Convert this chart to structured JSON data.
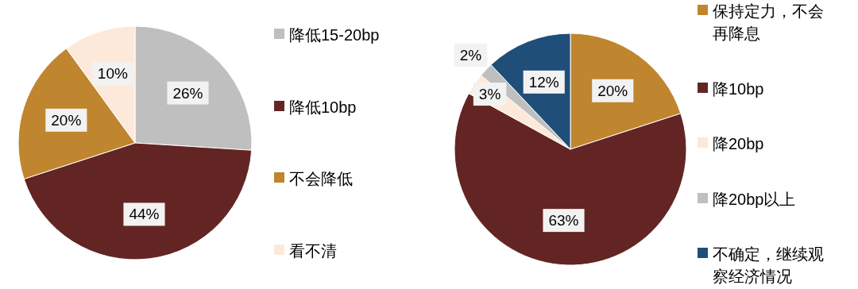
{
  "chart_data": [
    {
      "type": "pie",
      "categories": [
        "降低15-20bp",
        "降低10bp",
        "不会降低",
        "看不清"
      ],
      "values": [
        26,
        44,
        20,
        10
      ],
      "value_labels": [
        "26%",
        "44%",
        "20%",
        "10%"
      ],
      "colors": [
        "#bfbfbf",
        "#632523",
        "#c0852f",
        "#fde9d9"
      ],
      "legend": "right"
    },
    {
      "type": "pie",
      "categories": [
        "保持定力，不会再降息",
        "降10bp",
        "降20bp",
        "降20bp以上",
        "不确定，继续观察经济情况"
      ],
      "values": [
        20,
        63,
        3,
        2,
        12
      ],
      "value_labels": [
        "20%",
        "63%",
        "3%",
        "2%",
        "12%"
      ],
      "colors": [
        "#c0852f",
        "#632523",
        "#fde9d9",
        "#bfbfbf",
        "#1f4e79"
      ],
      "legend": "right"
    }
  ]
}
